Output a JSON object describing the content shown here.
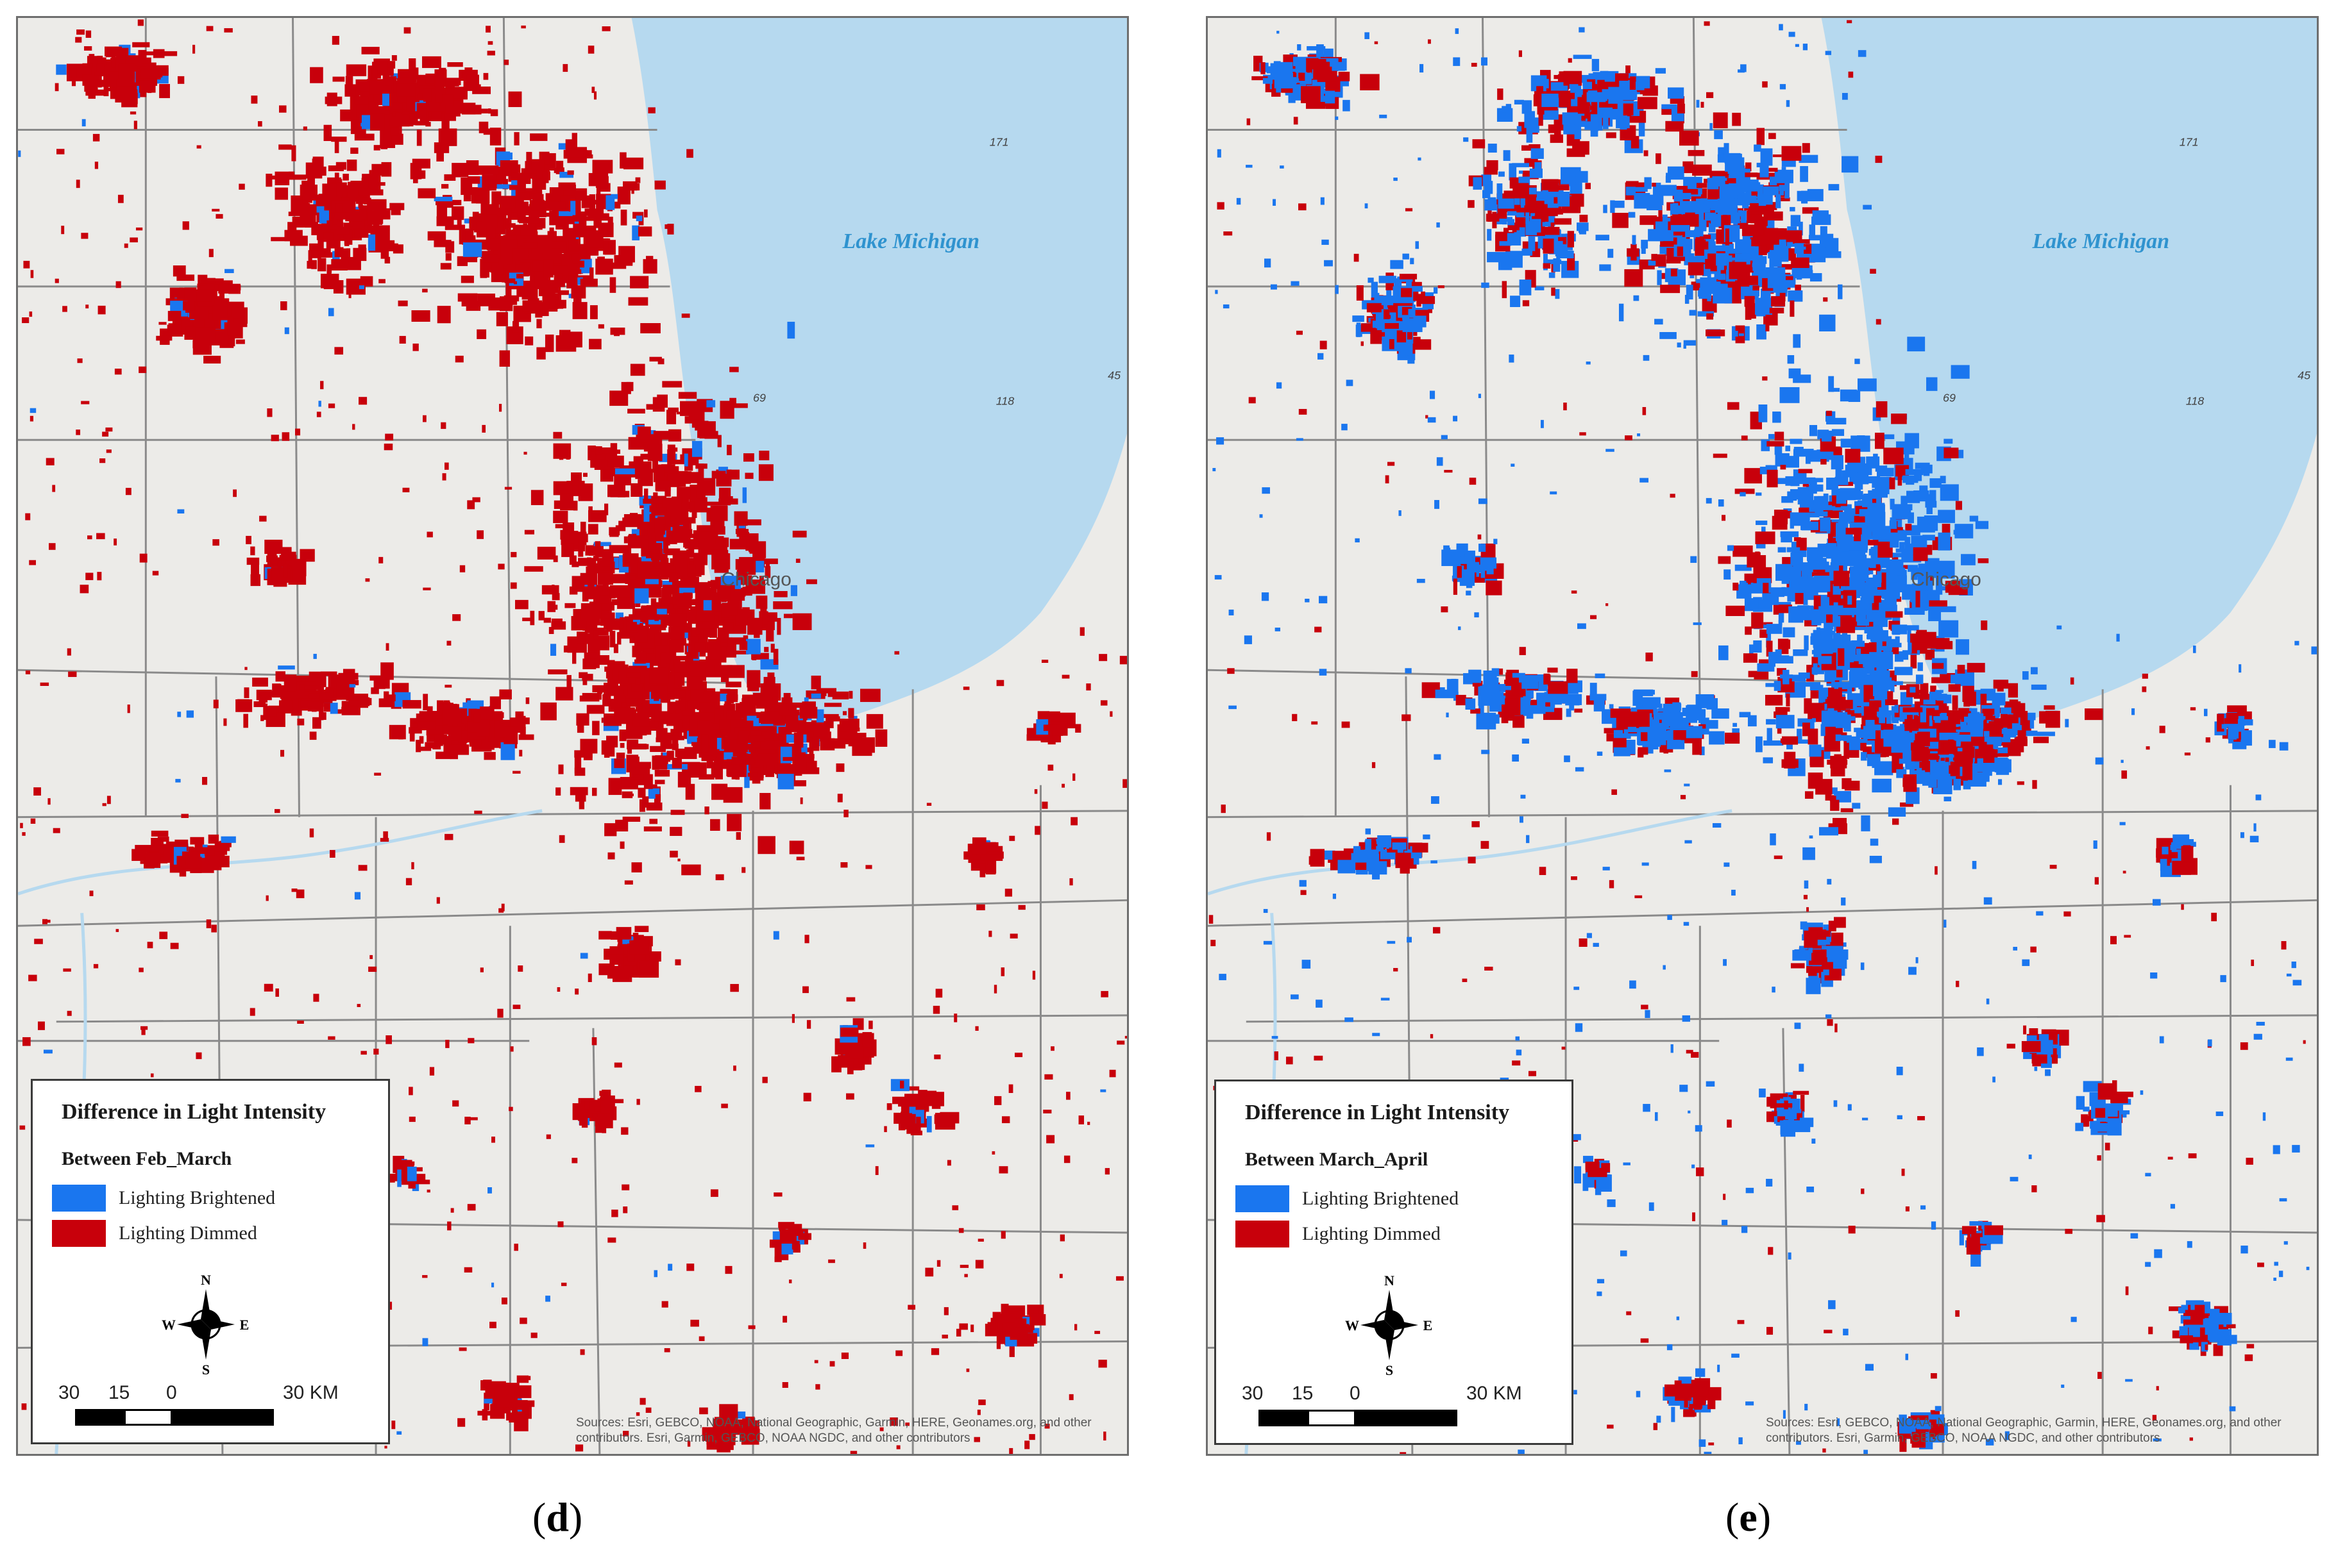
{
  "colors": {
    "land": "#ecebe8",
    "water": "#b6d9ef",
    "boundary": "#8a8a8a",
    "brightened": "#1a76ef",
    "dimmed": "#c8000b"
  },
  "map_labels": {
    "lake": "Lake Michigan",
    "city": "Chicago",
    "depth_171": "171",
    "depth_69": "69",
    "depth_118": "118",
    "depth_45": "45"
  },
  "panels": [
    {
      "caption_letter": "d",
      "legend": {
        "title": "Difference in Light Intensity",
        "subtitle": "Between Feb_March",
        "brightened_label": "Lighting Brightened",
        "dimmed_label": "Lighting Dimmed"
      },
      "dominant_change": "dimmed"
    },
    {
      "caption_letter": "e",
      "legend": {
        "title": "Difference in Light Intensity",
        "subtitle": "Between March_April",
        "brightened_label": "Lighting Brightened",
        "dimmed_label": "Lighting Dimmed"
      },
      "dominant_change": "mixed"
    }
  ],
  "compass": {
    "n": "N",
    "s": "S",
    "e": "E",
    "w": "W"
  },
  "scale": {
    "t1": "30",
    "t2": "15",
    "t3": "0",
    "t4": "30 KM"
  },
  "attribution": "Sources: Esri, GEBCO, NOAA, National Geographic, Garmin, HERE, Geonames.org, and other contributors. Esri, Garmin, GEBCO, NOAA NGDC, and other contributors"
}
